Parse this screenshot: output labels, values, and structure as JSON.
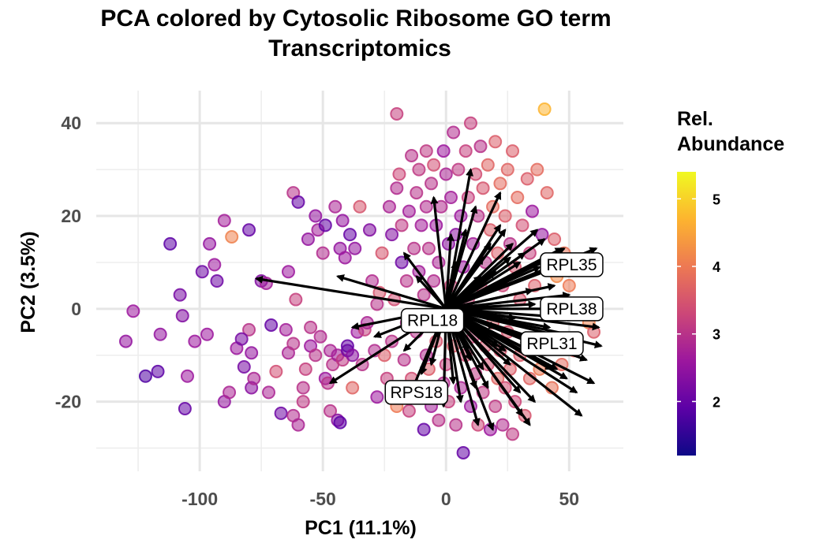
{
  "chart_data": {
    "type": "scatter",
    "title_line1": "PCA colored by Cytosolic Ribosome GO term",
    "title_line2": "Transcriptomics",
    "xlabel": "PC1 (11.1%)",
    "ylabel": "PC2 (3.5%)",
    "xlim": [
      -142,
      72
    ],
    "ylim": [
      -35,
      47
    ],
    "x_ticks": [
      -100,
      -50,
      0,
      50
    ],
    "x_tick_labels": [
      "-100",
      "-50",
      "0",
      "50"
    ],
    "y_ticks": [
      -20,
      0,
      20,
      40
    ],
    "y_tick_labels": [
      "-20",
      "0",
      "20",
      "40"
    ],
    "grid": true,
    "legend": {
      "title_line1": "Rel.",
      "title_line2": "Abundance",
      "placement": "right",
      "range": [
        1.2,
        5.4
      ],
      "ticks": [
        2,
        3,
        4,
        5
      ],
      "tick_labels": [
        "2",
        "3",
        "4",
        "5"
      ],
      "colormap": [
        "#0d0887",
        "#5c01a6",
        "#9c179e",
        "#cc4778",
        "#ed7953",
        "#fdb42f",
        "#f0f921"
      ]
    },
    "arrow_origin": [
      0,
      0
    ],
    "points": [
      [
        -130,
        -7,
        2.5
      ],
      [
        -127,
        -0.5,
        2.6
      ],
      [
        -122,
        -14.5,
        1.8
      ],
      [
        -117,
        -13.5,
        1.9
      ],
      [
        -116,
        -5.5,
        2.5
      ],
      [
        -112,
        14,
        1.9
      ],
      [
        -108,
        3,
        2.2
      ],
      [
        -107,
        -1.5,
        2.3
      ],
      [
        -106,
        -21.5,
        2.0
      ],
      [
        -105,
        -14.5,
        2.6
      ],
      [
        -102,
        -7,
        2.6
      ],
      [
        -99,
        8,
        2.1
      ],
      [
        -97,
        -5.5,
        2.6
      ],
      [
        -96,
        14,
        2.5
      ],
      [
        -94,
        9.5,
        2.6
      ],
      [
        -93,
        6,
        2.1
      ],
      [
        -90,
        19,
        2.7
      ],
      [
        -90,
        -20,
        2.5
      ],
      [
        -88,
        -18,
        2.8
      ],
      [
        -87,
        15.5,
        4.1
      ],
      [
        -85,
        -8.5,
        2.6
      ],
      [
        -80,
        17,
        2.0
      ],
      [
        -80,
        -4.5,
        3.0
      ],
      [
        -79,
        -9.5,
        2.5
      ],
      [
        -79,
        -17,
        2.4
      ],
      [
        -83,
        -6.5,
        2.2
      ],
      [
        -82,
        -12.5,
        2.2
      ],
      [
        -78,
        -15,
        2.8
      ],
      [
        -75,
        6,
        2.3
      ],
      [
        -73,
        5.5,
        2.7
      ],
      [
        -72,
        -18,
        2.8
      ],
      [
        -71,
        -3.5,
        2.0
      ],
      [
        -69,
        -13.5,
        3.4
      ],
      [
        -67,
        -22.5,
        2.1
      ],
      [
        -65,
        -4.5,
        2.7
      ],
      [
        -64,
        -9.5,
        2.8
      ],
      [
        -62,
        25,
        3.0
      ],
      [
        -64,
        8,
        2.6
      ],
      [
        -61,
        2,
        3.2
      ],
      [
        -62,
        -7.5,
        3.0
      ],
      [
        -60,
        23,
        2.0
      ],
      [
        -62,
        -23,
        2.9
      ],
      [
        -60,
        -25,
        2.8
      ],
      [
        -58,
        -20,
        3.1
      ],
      [
        -58,
        -17,
        3.0
      ],
      [
        -57,
        -13,
        3.2
      ],
      [
        -56,
        15,
        2.5
      ],
      [
        -55,
        -8,
        2.6
      ],
      [
        -53,
        20,
        2.5
      ],
      [
        -55,
        -4,
        3.0
      ],
      [
        -53,
        -10,
        3.0
      ],
      [
        -52,
        17,
        2.7
      ],
      [
        -51,
        -6,
        2.9
      ],
      [
        -50,
        12,
        2.9
      ],
      [
        -49,
        18,
        2.0
      ],
      [
        -49,
        -15,
        2.6
      ],
      [
        -48,
        -16,
        3.0
      ],
      [
        -47,
        -9,
        2.8
      ],
      [
        -47,
        -22,
        3.0
      ],
      [
        -46,
        -12,
        3.0
      ],
      [
        -45,
        22,
        2.8
      ],
      [
        -44,
        -10,
        2.7
      ],
      [
        -44,
        -24,
        2.4
      ],
      [
        -43,
        13,
        2.5
      ],
      [
        -43,
        -24.5,
        1.9
      ],
      [
        -42,
        19,
        2.5
      ],
      [
        -42,
        -11,
        3.1
      ],
      [
        -41,
        11,
        2.6
      ],
      [
        -40,
        -9,
        2.1
      ],
      [
        -40,
        -8,
        2.0
      ],
      [
        -39,
        16,
        2.0
      ],
      [
        -38,
        -17,
        3.7
      ],
      [
        -38,
        -10,
        2.4
      ],
      [
        -37,
        13,
        2.5
      ],
      [
        -36,
        -5,
        2.6
      ],
      [
        -35,
        22,
        3.5
      ],
      [
        -34,
        -12,
        3.0
      ],
      [
        -33,
        -4.5,
        3.2
      ],
      [
        -32,
        -3,
        2.8
      ],
      [
        -31,
        17,
        2.3
      ],
      [
        -30,
        6,
        2.9
      ],
      [
        -29,
        -9,
        2.9
      ],
      [
        -28,
        -19,
        2.6
      ],
      [
        -28,
        1,
        3.0
      ],
      [
        -27,
        3.5,
        3.5
      ],
      [
        -26,
        12,
        3.5
      ],
      [
        -25,
        -10,
        3.6
      ],
      [
        -24,
        -15,
        3.2
      ],
      [
        -23,
        22,
        2.8
      ],
      [
        -22,
        16,
        2.3
      ],
      [
        -22,
        -7,
        3.0
      ],
      [
        -21,
        2,
        3.4
      ],
      [
        -20,
        26,
        2.9
      ],
      [
        -20,
        42,
        3.2
      ],
      [
        -20,
        -21,
        4.0
      ],
      [
        -19,
        29,
        3.3
      ],
      [
        -18,
        18,
        3.1
      ],
      [
        -18,
        10,
        2.1
      ],
      [
        -17,
        -11,
        3.0
      ],
      [
        -16,
        6,
        3.0
      ],
      [
        -16,
        -3,
        2.9
      ],
      [
        -15,
        21,
        2.7
      ],
      [
        -15,
        -22,
        3.2
      ],
      [
        -14,
        33,
        3.0
      ],
      [
        -14,
        -15,
        3.4
      ],
      [
        -13,
        13,
        3.0
      ],
      [
        -12,
        25,
        3.0
      ],
      [
        -12,
        -5,
        3.0
      ],
      [
        -11,
        30,
        3.1
      ],
      [
        -11,
        8,
        2.7
      ],
      [
        -10,
        -18,
        3.1
      ],
      [
        -10,
        18,
        2.7
      ],
      [
        -9,
        3,
        3.0
      ],
      [
        -9,
        -26,
        2.0
      ],
      [
        -8,
        34,
        3.1
      ],
      [
        -8,
        22,
        2.9
      ],
      [
        -8,
        -10,
        2.9
      ],
      [
        -7,
        13,
        3.0
      ],
      [
        -7,
        -13,
        3.6
      ],
      [
        -6,
        27,
        3.0
      ],
      [
        -6,
        -21,
        2.7
      ],
      [
        -5,
        31,
        3.4
      ],
      [
        -5,
        6,
        2.9
      ],
      [
        -4,
        18,
        2.6
      ],
      [
        -4,
        -7,
        3.5
      ],
      [
        -3,
        10,
        2.8
      ],
      [
        -3,
        -24,
        3.0
      ],
      [
        -2,
        22,
        2.9
      ],
      [
        -2,
        -3,
        3.2
      ],
      [
        -1,
        34,
        2.6
      ],
      [
        -1,
        -16,
        2.9
      ],
      [
        0,
        29,
        2.8
      ],
      [
        0,
        -12,
        3.2
      ],
      [
        1,
        14,
        2.4
      ],
      [
        1,
        -20,
        3.2
      ],
      [
        2,
        24,
        2.7
      ],
      [
        2,
        5,
        3.3
      ],
      [
        3,
        -8,
        3.6
      ],
      [
        3,
        38,
        2.9
      ],
      [
        4,
        16,
        2.4
      ],
      [
        4,
        -25,
        3.0
      ],
      [
        5,
        30,
        3.1
      ],
      [
        5,
        -4,
        3.4
      ],
      [
        6,
        20,
        2.6
      ],
      [
        6,
        -17,
        2.8
      ],
      [
        7,
        9,
        2.6
      ],
      [
        7,
        -31,
        2.0
      ],
      [
        8,
        34,
        3.2
      ],
      [
        8,
        -10,
        3.4
      ],
      [
        9,
        24,
        3.2
      ],
      [
        9,
        2,
        3.3
      ],
      [
        10,
        40,
        3.2
      ],
      [
        10,
        -21,
        2.6
      ],
      [
        11,
        14,
        2.7
      ],
      [
        11,
        -6,
        3.3
      ],
      [
        12,
        29,
        3.4
      ],
      [
        12,
        -14,
        3.1
      ],
      [
        13,
        20,
        3.0
      ],
      [
        13,
        -25,
        3.3
      ],
      [
        14,
        5,
        3.4
      ],
      [
        14,
        35,
        3.0
      ],
      [
        15,
        -18,
        3.1
      ],
      [
        15,
        26,
        3.5
      ],
      [
        16,
        10,
        3.0
      ],
      [
        16,
        -8,
        3.5
      ],
      [
        17,
        31,
        3.7
      ],
      [
        17,
        -12,
        3.4
      ],
      [
        18,
        17,
        3.6
      ],
      [
        18,
        -26,
        2.6
      ],
      [
        19,
        22,
        3.8
      ],
      [
        19,
        -3,
        3.6
      ],
      [
        20,
        36,
        3.6
      ],
      [
        20,
        -21,
        3.1
      ],
      [
        21,
        12,
        3.6
      ],
      [
        21,
        -15,
        3.7
      ],
      [
        22,
        27,
        3.8
      ],
      [
        22,
        -9,
        3.5
      ],
      [
        23,
        5,
        3.3
      ],
      [
        23,
        -25,
        2.9
      ],
      [
        24,
        20,
        3.6
      ],
      [
        24,
        -17,
        3.4
      ],
      [
        25,
        30,
        3.7
      ],
      [
        25,
        -5,
        3.5
      ],
      [
        26,
        14,
        3.0
      ],
      [
        26,
        -13,
        3.6
      ],
      [
        27,
        34,
        3.6
      ],
      [
        27,
        -27,
        3.1
      ],
      [
        28,
        9,
        3.5
      ],
      [
        28,
        -20,
        3.3
      ],
      [
        29,
        24,
        3.8
      ],
      [
        30,
        2,
        3.5
      ],
      [
        30,
        -10,
        3.6
      ],
      [
        31,
        18,
        3.4
      ],
      [
        32,
        -23,
        3.5
      ],
      [
        33,
        28,
        3.6
      ],
      [
        34,
        12,
        3.2
      ],
      [
        34,
        -15,
        3.7
      ],
      [
        35,
        21,
        2.6
      ],
      [
        36,
        5,
        3.6
      ],
      [
        37,
        30,
        3.8
      ],
      [
        38,
        -13,
        4.0
      ],
      [
        39,
        16,
        2.5
      ],
      [
        40,
        43,
        4.7
      ],
      [
        40,
        -8,
        3.7
      ],
      [
        41,
        25,
        3.7
      ],
      [
        42,
        9,
        3.8
      ],
      [
        43,
        -17,
        3.9
      ],
      [
        44,
        15,
        3.6
      ],
      [
        45,
        7,
        4.2
      ],
      [
        47,
        -12,
        3.8
      ],
      [
        48,
        12,
        3.9
      ],
      [
        50,
        5,
        4.0
      ],
      [
        52,
        -9,
        3.7
      ],
      [
        55,
        10,
        3.7
      ],
      [
        58,
        -3,
        4.1
      ],
      [
        60,
        -5,
        3.6
      ]
    ],
    "arrows": [
      [
        -77,
        6.5
      ],
      [
        -44,
        7
      ],
      [
        -29,
        -6
      ],
      [
        -47,
        -16
      ],
      [
        -38,
        -4
      ],
      [
        -17,
        12
      ],
      [
        -17,
        -9
      ],
      [
        -15,
        -19
      ],
      [
        -5,
        24
      ],
      [
        -1,
        -21
      ],
      [
        3,
        -16
      ],
      [
        6,
        -20
      ],
      [
        10,
        30
      ],
      [
        13,
        -25
      ],
      [
        19,
        -26
      ],
      [
        22,
        25
      ],
      [
        24,
        17
      ],
      [
        27,
        14
      ],
      [
        31,
        -23
      ],
      [
        34,
        -25
      ],
      [
        36,
        -20
      ],
      [
        38,
        -10
      ],
      [
        43,
        -13
      ],
      [
        45,
        -13
      ],
      [
        48,
        13
      ],
      [
        50,
        3
      ],
      [
        52,
        -2
      ],
      [
        54,
        -6
      ],
      [
        57,
        -11
      ],
      [
        60,
        -16
      ],
      [
        61,
        13
      ],
      [
        62,
        -4
      ],
      [
        63,
        -8
      ],
      [
        55,
        -23
      ],
      [
        45,
        9
      ],
      [
        40,
        15
      ],
      [
        37,
        17
      ],
      [
        47,
        0
      ],
      [
        51,
        -9
      ],
      [
        42,
        -4
      ],
      [
        35,
        4
      ],
      [
        30,
        10
      ],
      [
        25,
        6
      ],
      [
        22,
        18
      ],
      [
        18,
        14
      ],
      [
        15,
        11
      ],
      [
        12,
        22
      ],
      [
        8,
        17
      ],
      [
        4,
        10
      ],
      [
        2,
        16
      ],
      [
        -8,
        -3
      ],
      [
        -12,
        7
      ],
      [
        -10,
        -14
      ],
      [
        -6,
        -12
      ],
      [
        -4,
        -6
      ],
      [
        6,
        -6
      ],
      [
        10,
        -11
      ],
      [
        15,
        -13
      ],
      [
        20,
        -4
      ],
      [
        24,
        -9
      ],
      [
        28,
        -2
      ],
      [
        33,
        -7
      ],
      [
        36,
        1
      ],
      [
        44,
        5
      ],
      [
        46,
        -9
      ],
      [
        49,
        -15
      ],
      [
        53,
        -18
      ],
      [
        30,
        -18
      ],
      [
        26,
        -12
      ],
      [
        21,
        -8
      ],
      [
        17,
        -17
      ],
      [
        12,
        -17
      ],
      [
        9,
        -9
      ],
      [
        14,
        7
      ],
      [
        20,
        8
      ],
      [
        26,
        11
      ],
      [
        32,
        12
      ],
      [
        38,
        9
      ],
      [
        43,
        11
      ],
      [
        47,
        13
      ]
    ],
    "gene_labels": [
      {
        "text": "RPL35",
        "x": 51,
        "y": 9.5
      },
      {
        "text": "RPL38",
        "x": 51,
        "y": 0
      },
      {
        "text": "RPL18",
        "x": -5.5,
        "y": -2.5
      },
      {
        "text": "RPL31",
        "x": 43,
        "y": -7.5
      },
      {
        "text": "RPS18",
        "x": -12,
        "y": -18
      }
    ]
  }
}
